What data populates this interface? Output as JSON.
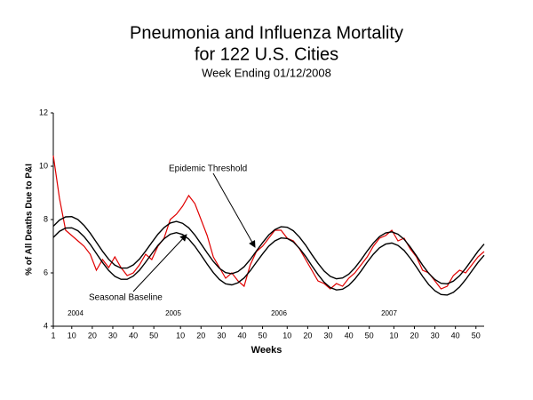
{
  "chart_data": {
    "type": "line",
    "title": "Pneumonia and Influenza Mortality",
    "title_line2": "for 122 U.S. Cities",
    "subtitle": "Week Ending 01/12/2008",
    "x_label": "Weeks",
    "y_label": "% of All Deaths Due to P&I",
    "year_labels": [
      "2004",
      "2005",
      "2006",
      "2007"
    ],
    "xlim": [
      1,
      211
    ],
    "ylim": [
      4,
      12
    ],
    "yticks": [
      4,
      6,
      8,
      10,
      12
    ],
    "xticks": [
      1,
      10,
      20,
      30,
      40,
      50,
      {
        "value": 63,
        "label": "10"
      },
      {
        "value": 73,
        "label": "20"
      },
      {
        "value": 83,
        "label": "30"
      },
      {
        "value": 93,
        "label": "40"
      },
      {
        "value": 103,
        "label": "50"
      },
      {
        "value": 115,
        "label": "10"
      },
      {
        "value": 125,
        "label": "20"
      },
      {
        "value": 135,
        "label": "30"
      },
      {
        "value": 145,
        "label": "40"
      },
      {
        "value": 155,
        "label": "50"
      },
      {
        "value": 167,
        "label": "10"
      },
      {
        "value": 177,
        "label": "20"
      },
      {
        "value": 187,
        "label": "30"
      },
      {
        "value": 197,
        "label": "40"
      },
      {
        "value": 207,
        "label": "50"
      }
    ],
    "x": [
      1,
      4,
      7,
      10,
      13,
      16,
      19,
      22,
      25,
      28,
      31,
      34,
      37,
      40,
      43,
      46,
      49,
      52,
      55,
      58,
      61,
      64,
      67,
      70,
      73,
      76,
      79,
      82,
      85,
      88,
      91,
      94,
      97,
      100,
      103,
      106,
      109,
      112,
      115,
      118,
      121,
      124,
      127,
      130,
      133,
      136,
      139,
      142,
      145,
      148,
      151,
      154,
      157,
      160,
      163,
      166,
      169,
      172,
      175,
      178,
      181,
      184,
      187,
      190,
      193,
      196,
      199,
      202,
      205,
      208,
      211
    ],
    "series": [
      {
        "color": "#e00000",
        "values": [
          10.4,
          8.8,
          7.6,
          7.4,
          7.2,
          7.0,
          6.7,
          6.1,
          6.5,
          6.2,
          6.6,
          6.2,
          5.9,
          6.0,
          6.3,
          6.7,
          6.5,
          7.0,
          7.3,
          8.0,
          8.2,
          8.5,
          8.9,
          8.6,
          8.0,
          7.4,
          6.6,
          6.2,
          5.8,
          6.0,
          5.7,
          5.5,
          6.3,
          6.8,
          7.0,
          7.3,
          7.6,
          7.6,
          7.3,
          7.2,
          6.9,
          6.5,
          6.1,
          5.7,
          5.6,
          5.4,
          5.6,
          5.5,
          5.8,
          6.0,
          6.3,
          6.6,
          7.0,
          7.3,
          7.4,
          7.6,
          7.2,
          7.3,
          6.9,
          6.6,
          6.1,
          6.0,
          5.7,
          5.4,
          5.5,
          5.9,
          6.1,
          6.0,
          6.3,
          6.6,
          6.8
        ]
      },
      {
        "name": "Epidemic Threshold",
        "color": "#000000",
        "values": [
          7.75,
          7.98,
          8.1,
          8.11,
          8.0,
          7.78,
          7.49,
          7.15,
          6.81,
          6.51,
          6.29,
          6.18,
          6.18,
          6.3,
          6.52,
          6.82,
          7.14,
          7.45,
          7.7,
          7.87,
          7.93,
          7.86,
          7.69,
          7.42,
          7.09,
          6.75,
          6.43,
          6.17,
          6.01,
          5.97,
          6.05,
          6.23,
          6.5,
          6.82,
          7.13,
          7.42,
          7.62,
          7.73,
          7.71,
          7.58,
          7.34,
          7.04,
          6.69,
          6.36,
          6.07,
          5.87,
          5.78,
          5.81,
          5.95,
          6.19,
          6.49,
          6.82,
          7.12,
          7.36,
          7.5,
          7.54,
          7.45,
          7.26,
          6.97,
          6.64,
          6.29,
          5.98,
          5.75,
          5.61,
          5.59,
          5.69,
          5.89,
          6.17,
          6.49,
          6.81,
          7.08
        ]
      },
      {
        "name": "Seasonal Baseline",
        "color": "#000000",
        "values": [
          7.33,
          7.56,
          7.68,
          7.69,
          7.58,
          7.36,
          7.07,
          6.73,
          6.39,
          6.09,
          5.87,
          5.76,
          5.76,
          5.88,
          6.1,
          6.4,
          6.72,
          7.03,
          7.28,
          7.45,
          7.51,
          7.44,
          7.27,
          7.0,
          6.67,
          6.33,
          6.01,
          5.75,
          5.59,
          5.55,
          5.63,
          5.81,
          6.08,
          6.4,
          6.71,
          7.0,
          7.2,
          7.31,
          7.29,
          7.16,
          6.92,
          6.62,
          6.27,
          5.94,
          5.65,
          5.45,
          5.36,
          5.39,
          5.53,
          5.77,
          6.07,
          6.4,
          6.7,
          6.94,
          7.08,
          7.12,
          7.03,
          6.84,
          6.55,
          6.22,
          5.87,
          5.56,
          5.33,
          5.19,
          5.17,
          5.27,
          5.47,
          5.75,
          6.07,
          6.39,
          6.66
        ]
      }
    ]
  }
}
